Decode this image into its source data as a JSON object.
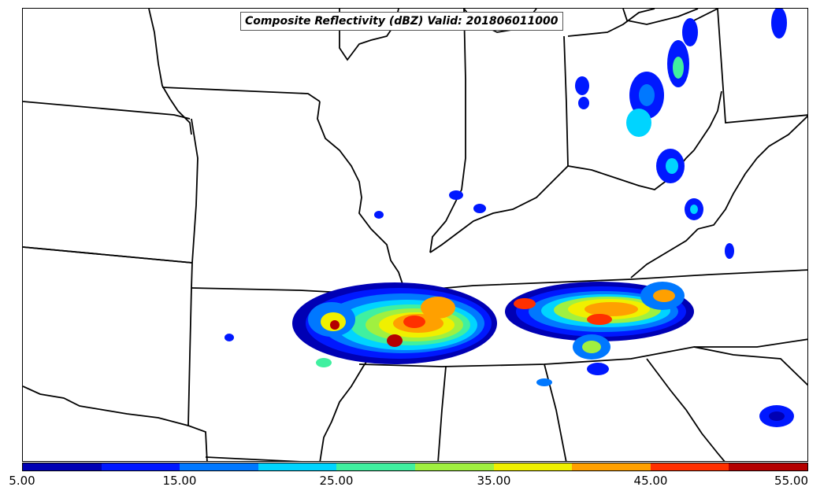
{
  "title": "Composite Reflectivity (dBZ) Valid: 201806011000",
  "colorbar": {
    "colors": [
      "#0000b4",
      "#0018ff",
      "#0078ff",
      "#00d4ff",
      "#40f0a0",
      "#a0f040",
      "#f0f000",
      "#ffa000",
      "#ff3000",
      "#b40000"
    ],
    "tick_labels": [
      "5.00",
      "15.00",
      "25.00",
      "35.00",
      "45.00",
      "55.00"
    ],
    "range": [
      5,
      55
    ]
  }
}
